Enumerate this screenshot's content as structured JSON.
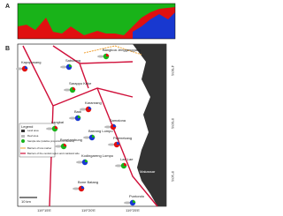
{
  "panel_a": {
    "label": "A"
  },
  "panel_b": {
    "label": "B",
    "places": [
      "Bangkoa Jenggenggang",
      "Kapoposang",
      "Sabutung",
      "Sarappo Keke",
      "Karanrang",
      "Badi",
      "Langkai",
      "Samalona",
      "Barrang Lompo",
      "Bonetambung",
      "Pajenekang",
      "Kodingareng Lompo",
      "Lae Lae",
      "Bone Batang",
      "Puntondo"
    ],
    "city": "Makassar",
    "legend": {
      "title": "Legend",
      "items": [
        "Land area",
        "Reef area",
        "Sample site (relative proportion of clusters)",
        "Barriers of low marker",
        "Barriers of the central region and mainland side"
      ]
    },
    "scale": "10 km",
    "lon_labels": [
      "119°15'E",
      "119°20'E",
      "119°25'E"
    ],
    "lat_labels": [
      "4°50'S",
      "5°00'S",
      "5°10'S"
    ]
  }
}
